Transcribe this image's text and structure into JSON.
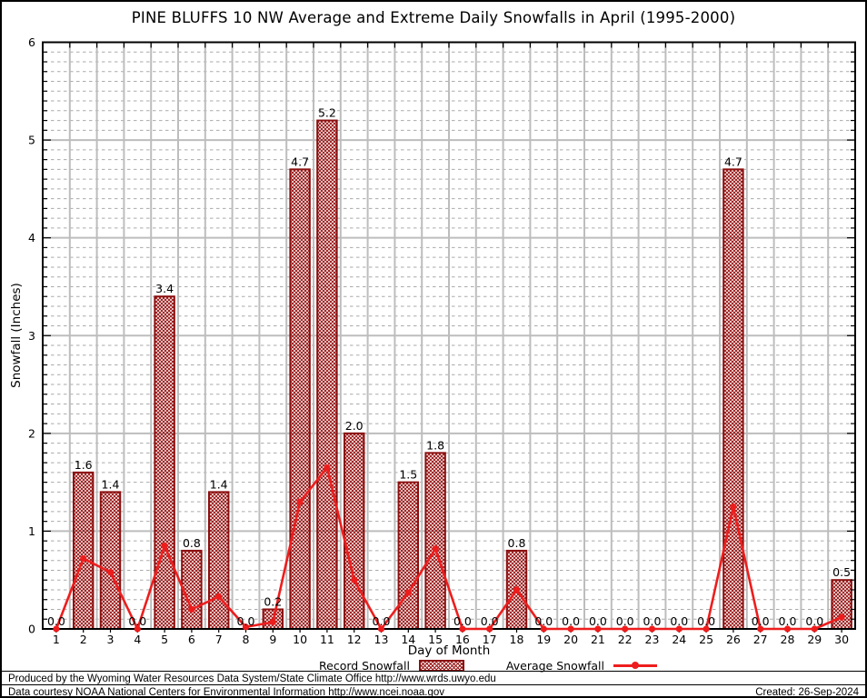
{
  "title": "PINE BLUFFS 10 NW Average and Extreme Daily Snowfalls in April (1995-2000)",
  "chart_data": {
    "type": "bar",
    "title": "PINE BLUFFS 10 NW Average and Extreme Daily Snowfalls in April (1995-2000)",
    "xlabel": "Day of Month",
    "ylabel": "Snowfall (Inches)",
    "ylim": [
      0,
      6
    ],
    "y_major_tick": 1,
    "y_minor_tick": 0.1,
    "grid": "major solid gray at integers and day boundaries, minor dashed every 0.1",
    "legend_position": "bottom",
    "categories": [
      1,
      2,
      3,
      4,
      5,
      6,
      7,
      8,
      9,
      10,
      11,
      12,
      13,
      14,
      15,
      16,
      17,
      18,
      19,
      20,
      21,
      22,
      23,
      24,
      25,
      26,
      27,
      28,
      29,
      30
    ],
    "series": [
      {
        "name": "Record Snowfall",
        "type": "bar",
        "values": [
          0.0,
          1.6,
          1.4,
          0.0,
          3.4,
          0.8,
          1.4,
          0.0,
          0.2,
          4.7,
          5.2,
          2.0,
          0.0,
          1.5,
          1.8,
          0.0,
          0.0,
          0.8,
          0.0,
          0.0,
          0.0,
          0.0,
          0.0,
          0.0,
          0.0,
          4.7,
          0.0,
          0.0,
          0.0,
          0.5
        ],
        "value_labels": [
          "0.0",
          "1.6",
          "1.4",
          "0.0",
          "3.4",
          "0.8",
          "1.4",
          "0.0",
          "0.2",
          "4.7",
          "5.2",
          "2.0",
          "0.0",
          "1.5",
          "1.8",
          "0.0",
          "0.0",
          "0.8",
          "0.0",
          "0.0",
          "0.0",
          "0.0",
          "0.0",
          "0.0",
          "0.0",
          "4.7",
          "0.0",
          "0.0",
          "0.0",
          "0.5"
        ]
      },
      {
        "name": "Average Snowfall",
        "type": "line",
        "values": [
          0.0,
          0.72,
          0.58,
          0.0,
          0.85,
          0.2,
          0.33,
          0.02,
          0.07,
          1.3,
          1.65,
          0.5,
          0.0,
          0.37,
          0.82,
          0.0,
          0.0,
          0.4,
          0.0,
          0.0,
          0.0,
          0.0,
          0.0,
          0.0,
          0.0,
          1.25,
          0.0,
          0.0,
          0.0,
          0.12
        ]
      }
    ]
  },
  "legend": {
    "items": [
      {
        "label": "Record Snowfall",
        "swatch": "hatched-box"
      },
      {
        "label": "Average Snowfall",
        "swatch": "red-line-marker"
      }
    ]
  },
  "footer": {
    "line1": "Produced by the Wyoming Water Resources Data System/State Climate Office http://www.wrds.uwyo.edu",
    "line2": "Data courtesy NOAA National Centers for Environmental Information http://www.ncei.noaa.gov",
    "created": "Created: 26-Sep-2024"
  },
  "colors": {
    "background": "#ffffff",
    "bar_border": "#8b0f0f",
    "bar_hatch": "#9a1616",
    "line": "#ee1d1d",
    "grid_major": "#bdbdbd",
    "grid_minor": "#aaaaaa",
    "text": "#000000"
  }
}
